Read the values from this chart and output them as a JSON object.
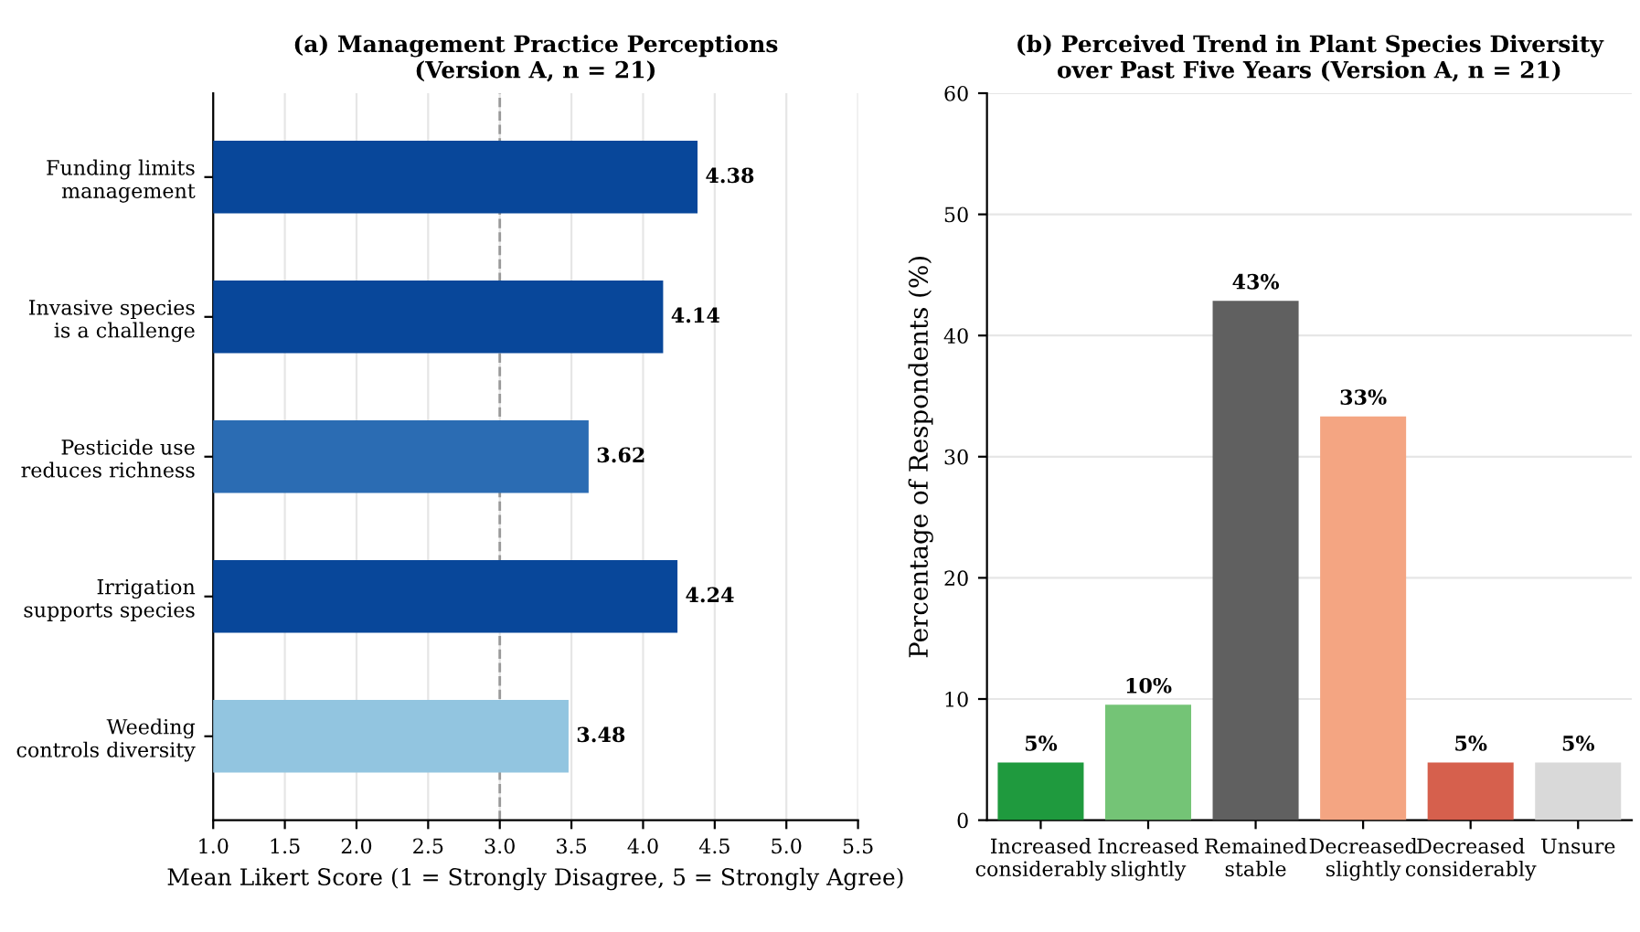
{
  "chart_data": [
    {
      "type": "bar",
      "orientation": "horizontal",
      "title": "(a) Management Practice Perceptions\n(Version A, n = 21)",
      "xlabel": "Mean Likert Score (1 = Strongly Disagree, 5 = Strongly Agree)",
      "categories": [
        "Funding limits\nmanagement",
        "Invasive species\nis a challenge",
        "Pesticide use\nreduces richness",
        "Irrigation\nsupports species",
        "Weeding\ncontrols diversity"
      ],
      "values": [
        4.38,
        4.14,
        3.62,
        4.24,
        3.48
      ],
      "colors": [
        "#08479a",
        "#08479a",
        "#2b6cb3",
        "#08479a",
        "#92c5e0"
      ],
      "xlim": [
        1.0,
        5.5
      ],
      "xticks": [
        {
          "value": 1.0,
          "label": "1.0"
        },
        {
          "value": 1.5,
          "label": "1.5"
        },
        {
          "value": 2.0,
          "label": "2.0"
        },
        {
          "value": 2.5,
          "label": "2.5"
        },
        {
          "value": 3.0,
          "label": "3.0"
        },
        {
          "value": 3.5,
          "label": "3.5"
        },
        {
          "value": 4.0,
          "label": "4.0"
        },
        {
          "value": 4.5,
          "label": "4.5"
        },
        {
          "value": 5.0,
          "label": "5.0"
        },
        {
          "value": 5.5,
          "label": "5.5"
        }
      ],
      "ref_lines": [
        {
          "axis": "x",
          "value": 3.0,
          "color": "#999999",
          "line_style": "dashed"
        }
      ],
      "data_labels": true,
      "grid": "x"
    },
    {
      "type": "bar",
      "title": "(b) Perceived Trend in Plant Species Diversity\nover Past Five Years (Version A, n = 21)",
      "ylabel": "Percentage of Respondents (%)",
      "categories": [
        "Increased\nconsiderably",
        "Increased\nslightly",
        "Remained\nstable",
        "Decreased\nslightly",
        "Decreased\nconsiderably",
        "Unsure"
      ],
      "values": [
        4.76,
        9.52,
        42.86,
        33.33,
        4.76,
        4.76
      ],
      "colors": [
        "#1f9a3e",
        "#74c476",
        "#606060",
        "#f4a582",
        "#d6604d",
        "#d9d9d9"
      ],
      "value_labels": [
        "5%",
        "10%",
        "43%",
        "33%",
        "5%",
        "5%"
      ],
      "ylim": [
        0,
        60
      ],
      "yticks": [
        0,
        10,
        20,
        30,
        40,
        50,
        60
      ],
      "grid": "y"
    }
  ]
}
